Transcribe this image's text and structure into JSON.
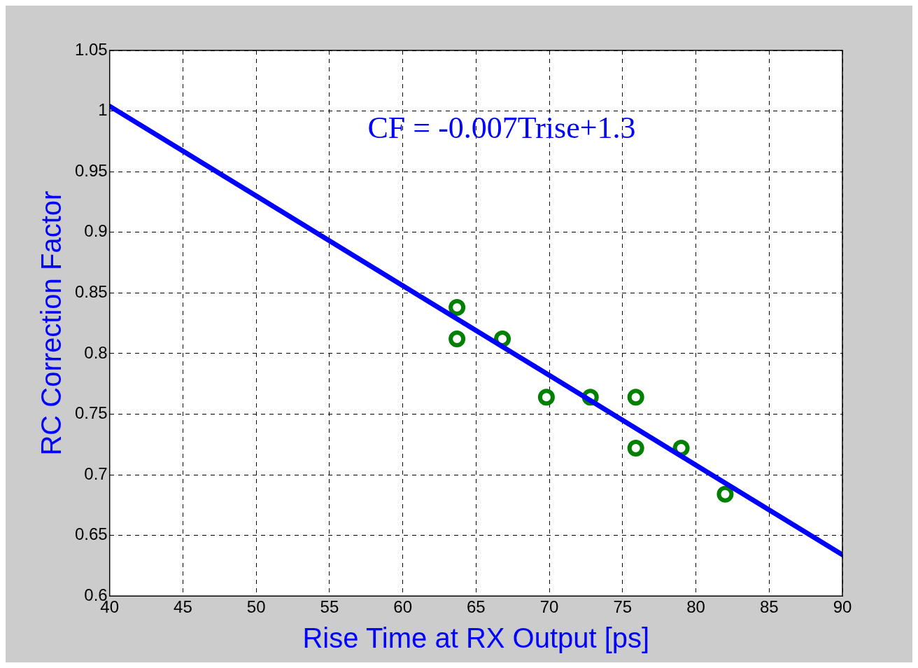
{
  "chart_data": {
    "type": "scatter",
    "xlabel": "Rise Time at RX Output [ps]",
    "ylabel": "RC Correction Factor",
    "annotations": [
      "CF = -0.007Trise+1.3"
    ],
    "xlim": [
      40,
      90
    ],
    "xticks": [
      40,
      45,
      50,
      55,
      60,
      65,
      70,
      75,
      80,
      85,
      90
    ],
    "ylim": [
      0.6,
      1.05
    ],
    "yticks": [
      0.6,
      0.65,
      0.7,
      0.75,
      0.8,
      0.85,
      0.9,
      0.95,
      1,
      1.05
    ],
    "grid": true,
    "legend": false,
    "series": [
      {
        "type": "line",
        "color": "#0000ff",
        "marker": "none",
        "line_style": "solid",
        "x": [
          40,
          50,
          60,
          70,
          80,
          90
        ],
        "values": [
          1.004,
          0.93,
          0.856,
          0.782,
          0.708,
          0.634
        ]
      },
      {
        "type": "scatter",
        "color": "#008000",
        "marker": "circle",
        "x": [
          63.7,
          63.7,
          66.8,
          69.8,
          72.8,
          75.9,
          75.9,
          79,
          82
        ],
        "values": [
          0.838,
          0.812,
          0.812,
          0.764,
          0.764,
          0.764,
          0.722,
          0.722,
          0.684
        ]
      }
    ]
  }
}
